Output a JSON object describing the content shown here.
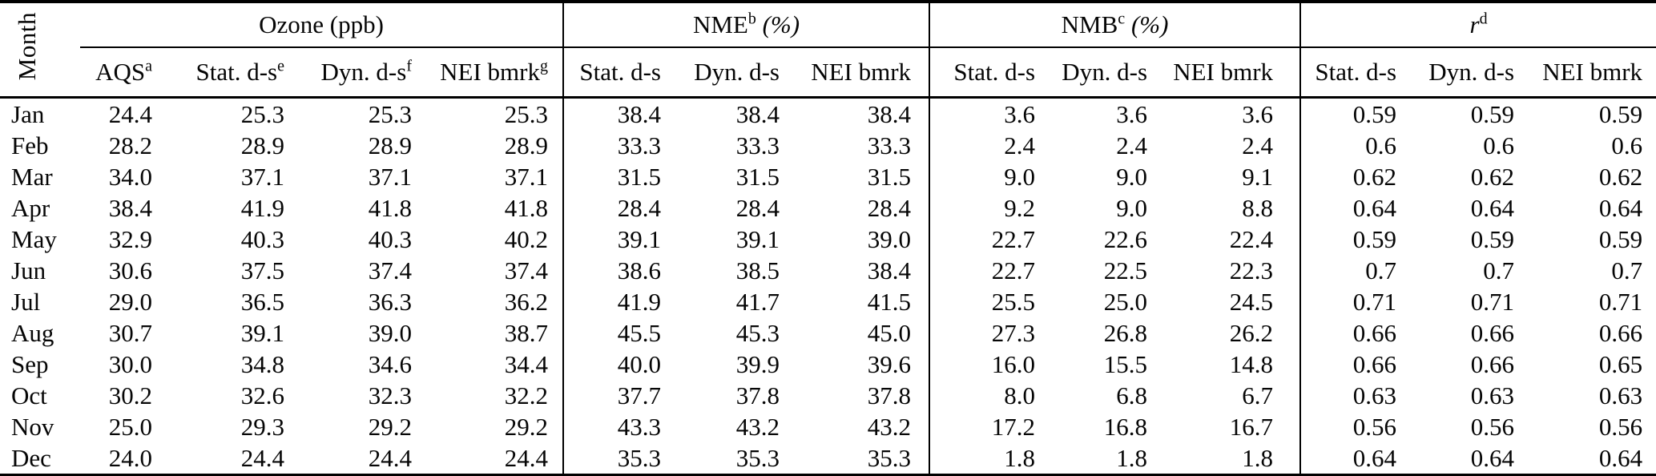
{
  "table": {
    "month_header": "Month",
    "groups": [
      {
        "pre": "Ozone (ppb)",
        "sup": "",
        "post": "",
        "columns": [
          {
            "label": "AQS",
            "sup": "a"
          },
          {
            "label": "Stat. d-s",
            "sup": "e"
          },
          {
            "label": "Dyn. d-s",
            "sup": "f"
          },
          {
            "label": "NEI bmrk",
            "sup": "g"
          }
        ]
      },
      {
        "pre": "NME",
        "sup": "b",
        "post": " (%)",
        "columns": [
          {
            "label": "Stat. d-s",
            "sup": ""
          },
          {
            "label": "Dyn. d-s",
            "sup": ""
          },
          {
            "label": "NEI bmrk",
            "sup": ""
          }
        ]
      },
      {
        "pre": "NMB",
        "sup": "c",
        "post": " (%)",
        "columns": [
          {
            "label": "Stat. d-s",
            "sup": ""
          },
          {
            "label": "Dyn. d-s",
            "sup": ""
          },
          {
            "label": "NEI bmrk",
            "sup": ""
          }
        ]
      },
      {
        "pre": "r",
        "sup": "d",
        "post": "",
        "columns": [
          {
            "label": "Stat. d-s",
            "sup": ""
          },
          {
            "label": "Dyn. d-s",
            "sup": ""
          },
          {
            "label": "NEI bmrk",
            "sup": ""
          }
        ]
      }
    ],
    "rows": [
      {
        "month": "Jan",
        "values": [
          "24.4",
          "25.3",
          "25.3",
          "25.3",
          "38.4",
          "38.4",
          "38.4",
          "3.6",
          "3.6",
          "3.6",
          "0.59",
          "0.59",
          "0.59"
        ]
      },
      {
        "month": "Feb",
        "values": [
          "28.2",
          "28.9",
          "28.9",
          "28.9",
          "33.3",
          "33.3",
          "33.3",
          "2.4",
          "2.4",
          "2.4",
          "0.6",
          "0.6",
          "0.6"
        ]
      },
      {
        "month": "Mar",
        "values": [
          "34.0",
          "37.1",
          "37.1",
          "37.1",
          "31.5",
          "31.5",
          "31.5",
          "9.0",
          "9.0",
          "9.1",
          "0.62",
          "0.62",
          "0.62"
        ]
      },
      {
        "month": "Apr",
        "values": [
          "38.4",
          "41.9",
          "41.8",
          "41.8",
          "28.4",
          "28.4",
          "28.4",
          "9.2",
          "9.0",
          "8.8",
          "0.64",
          "0.64",
          "0.64"
        ]
      },
      {
        "month": "May",
        "values": [
          "32.9",
          "40.3",
          "40.3",
          "40.2",
          "39.1",
          "39.1",
          "39.0",
          "22.7",
          "22.6",
          "22.4",
          "0.59",
          "0.59",
          "0.59"
        ]
      },
      {
        "month": "Jun",
        "values": [
          "30.6",
          "37.5",
          "37.4",
          "37.4",
          "38.6",
          "38.5",
          "38.4",
          "22.7",
          "22.5",
          "22.3",
          "0.7",
          "0.7",
          "0.7"
        ]
      },
      {
        "month": "Jul",
        "values": [
          "29.0",
          "36.5",
          "36.3",
          "36.2",
          "41.9",
          "41.7",
          "41.5",
          "25.5",
          "25.0",
          "24.5",
          "0.71",
          "0.71",
          "0.71"
        ]
      },
      {
        "month": "Aug",
        "values": [
          "30.7",
          "39.1",
          "39.0",
          "38.7",
          "45.5",
          "45.3",
          "45.0",
          "27.3",
          "26.8",
          "26.2",
          "0.66",
          "0.66",
          "0.66"
        ]
      },
      {
        "month": "Sep",
        "values": [
          "30.0",
          "34.8",
          "34.6",
          "34.4",
          "40.0",
          "39.9",
          "39.6",
          "16.0",
          "15.5",
          "14.8",
          "0.66",
          "0.66",
          "0.65"
        ]
      },
      {
        "month": "Oct",
        "values": [
          "30.2",
          "32.6",
          "32.3",
          "32.2",
          "37.7",
          "37.8",
          "37.8",
          "8.0",
          "6.8",
          "6.7",
          "0.63",
          "0.63",
          "0.63"
        ]
      },
      {
        "month": "Nov",
        "values": [
          "25.0",
          "29.3",
          "29.2",
          "29.2",
          "43.3",
          "43.2",
          "43.2",
          "17.2",
          "16.8",
          "16.7",
          "0.56",
          "0.56",
          "0.56"
        ]
      },
      {
        "month": "Dec",
        "values": [
          "24.0",
          "24.4",
          "24.4",
          "24.4",
          "35.3",
          "35.3",
          "35.3",
          "1.8",
          "1.8",
          "1.8",
          "0.64",
          "0.64",
          "0.64"
        ]
      }
    ]
  }
}
